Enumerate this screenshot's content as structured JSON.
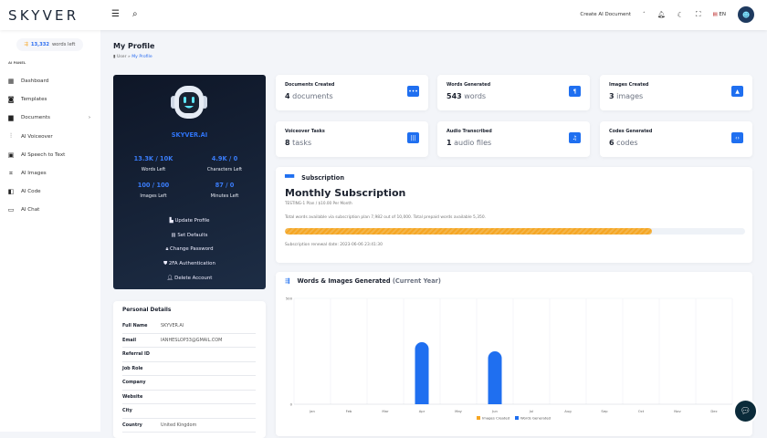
{
  "header": {
    "logo": "SKYVER",
    "create_label": "Create AI Document",
    "lang": "EN"
  },
  "sidebar": {
    "credits_value": "13,332",
    "credits_label": "words left",
    "panel_label": "AI PANEL",
    "items": [
      {
        "label": "Dashboard",
        "icon": "▦"
      },
      {
        "label": "Templates",
        "icon": "◙"
      },
      {
        "label": "Documents",
        "icon": "▆"
      },
      {
        "label": "AI Voiceover",
        "icon": "⫶"
      },
      {
        "label": "AI Speech to Text",
        "icon": "▣"
      },
      {
        "label": "AI Images",
        "icon": "⌗"
      },
      {
        "label": "AI Code",
        "icon": "◧"
      },
      {
        "label": "AI Chat",
        "icon": "▭"
      }
    ]
  },
  "page": {
    "title": "My Profile",
    "breadcrumb": [
      "User",
      "My Profile"
    ]
  },
  "profile": {
    "name": "SKYVER.AI",
    "stats": [
      {
        "value": "13.3K / 10K",
        "label": "Words Left"
      },
      {
        "value": "4.9K / 0",
        "label": "Characters Left"
      },
      {
        "value": "100 / 100",
        "label": "Images Left"
      },
      {
        "value": "87 / 0",
        "label": "Minutes Left"
      }
    ],
    "actions": [
      "Update Profile",
      "Set Defaults",
      "Change Password",
      "2FA Authentication",
      "Delete Account"
    ]
  },
  "personal": {
    "title": "Personal Details",
    "rows": [
      {
        "k": "Full Name",
        "v": "SKYVER.AI"
      },
      {
        "k": "Email",
        "v": "IANHESLOP33@GMAIL.COM"
      },
      {
        "k": "Referral ID",
        "v": ""
      },
      {
        "k": "Job Role",
        "v": ""
      },
      {
        "k": "Company",
        "v": ""
      },
      {
        "k": "Website",
        "v": ""
      },
      {
        "k": "City",
        "v": ""
      },
      {
        "k": "Country",
        "v": "United Kingdom"
      }
    ]
  },
  "stats": [
    {
      "title": "Documents Created",
      "num": "4",
      "unit": "documents",
      "icon": "•••"
    },
    {
      "title": "Words Generated",
      "num": "543",
      "unit": "words",
      "icon": "¶"
    },
    {
      "title": "Images Created",
      "num": "3",
      "unit": "images",
      "icon": "▲"
    },
    {
      "title": "Voiceover Tasks",
      "num": "8",
      "unit": "tasks",
      "icon": "|||"
    },
    {
      "title": "Audio Transcribed",
      "num": "1",
      "unit": "audio files",
      "icon": "♫"
    },
    {
      "title": "Codes Generated",
      "num": "6",
      "unit": "codes",
      "icon": "‹›"
    }
  ],
  "subscription": {
    "heading": "Subscription",
    "plan": "Monthly Subscription",
    "price": "TESTING-1 Plan / $10.00 Per Month",
    "words": "Total words available via subscription plan 7,982 out of 10,000. Total prepaid words available 5,350.",
    "progress": 0.798,
    "renewal": "Subscription renewal date: 2023-06-06 23:41:30"
  },
  "chart_title": "Words & Images Generated",
  "chart_title_suffix": "(Current Year)",
  "chart_data": {
    "type": "bar",
    "categories": [
      "Jan",
      "Feb",
      "Mar",
      "Apr",
      "May",
      "Jun",
      "Jul",
      "Aug",
      "Sep",
      "Oct",
      "Nov",
      "Dec"
    ],
    "series": [
      {
        "name": "Images Created",
        "color": "#f6a623",
        "values": [
          0,
          0,
          0,
          0,
          0,
          0,
          0,
          0,
          0,
          0,
          0,
          0
        ]
      },
      {
        "name": "Words Generated",
        "color": "#1f6ff0",
        "values": [
          0,
          0,
          0,
          293,
          0,
          250,
          0,
          0,
          0,
          0,
          0,
          0
        ]
      }
    ],
    "ylim": [
      0,
      500
    ],
    "yticks": [
      "0",
      "500"
    ],
    "grid": true,
    "legend": "bottom"
  }
}
